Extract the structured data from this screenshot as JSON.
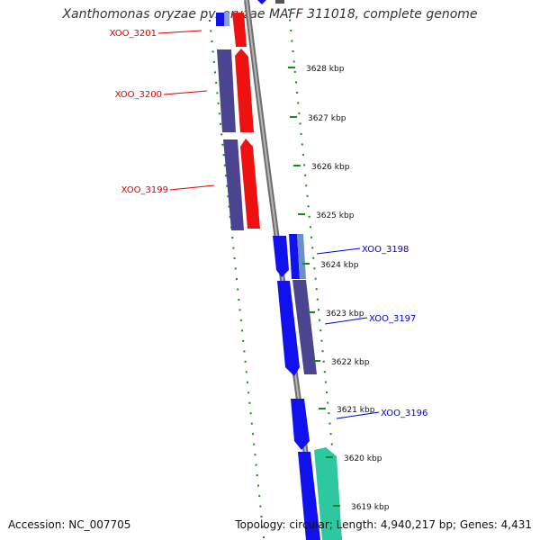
{
  "title": "Xanthomonas oryzae pv. oryzae MAFF 311018, complete genome",
  "accession_text": "Accession: NC_007705",
  "summary_text": "Topology: circular; Length: 4,940,217 bp; Genes: 4,431",
  "colors": {
    "reverse_label": "#dd0000",
    "forward_label": "#0000cc",
    "backbone": "#8a8a8a",
    "tick_green": "#1a8a1a",
    "red_gene": "#ee1111",
    "blue_gene": "#1111ee",
    "slate_gene": "#4b4490",
    "teal_gene": "#2ec8a0"
  },
  "ticks": [
    {
      "label": "3628 kbp"
    },
    {
      "label": "3627 kbp"
    },
    {
      "label": "3626 kbp"
    },
    {
      "label": "3625 kbp"
    },
    {
      "label": "3624 kbp"
    },
    {
      "label": "3623 kbp"
    },
    {
      "label": "3622 kbp"
    },
    {
      "label": "3621 kbp"
    },
    {
      "label": "3620 kbp"
    },
    {
      "label": "3619 kbp"
    }
  ],
  "gene_labels": [
    {
      "label": "XOO_3201",
      "strand": "reverse"
    },
    {
      "label": "XOO_3200",
      "strand": "reverse"
    },
    {
      "label": "XOO_3199",
      "strand": "reverse"
    },
    {
      "label": "XOO_3198",
      "strand": "forward"
    },
    {
      "label": "XOO_3197",
      "strand": "forward"
    },
    {
      "label": "XOO_3196",
      "strand": "forward"
    }
  ]
}
